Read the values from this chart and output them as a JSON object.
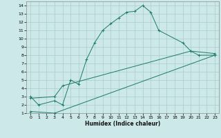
{
  "title": "",
  "xlabel": "Humidex (Indice chaleur)",
  "bg_color": "#cce8e8",
  "grid_color": "#aacccc",
  "line_color": "#1a7a6a",
  "xlim": [
    -0.5,
    23.5
  ],
  "ylim": [
    1,
    14.5
  ],
  "xticks": [
    0,
    1,
    2,
    3,
    4,
    5,
    6,
    7,
    8,
    9,
    10,
    11,
    12,
    13,
    14,
    15,
    16,
    17,
    18,
    19,
    20,
    21,
    22,
    23
  ],
  "yticks": [
    1,
    2,
    3,
    4,
    5,
    6,
    7,
    8,
    9,
    10,
    11,
    12,
    13,
    14
  ],
  "line1_x": [
    0,
    1,
    3,
    4,
    5,
    6,
    7,
    8,
    9,
    10,
    11,
    12,
    13,
    14,
    15,
    16,
    19,
    20,
    21,
    23
  ],
  "line1_y": [
    3.0,
    2.0,
    2.5,
    2.0,
    5.0,
    4.5,
    7.5,
    9.5,
    11.0,
    11.8,
    12.5,
    13.2,
    13.3,
    14.0,
    13.2,
    11.0,
    9.5,
    8.5,
    8.0,
    8.0
  ],
  "line2_x": [
    0,
    3,
    4,
    20,
    23
  ],
  "line2_y": [
    2.8,
    3.0,
    4.3,
    8.5,
    8.2
  ],
  "line3_x": [
    0,
    3,
    23
  ],
  "line3_y": [
    1.2,
    1.0,
    8.0
  ]
}
